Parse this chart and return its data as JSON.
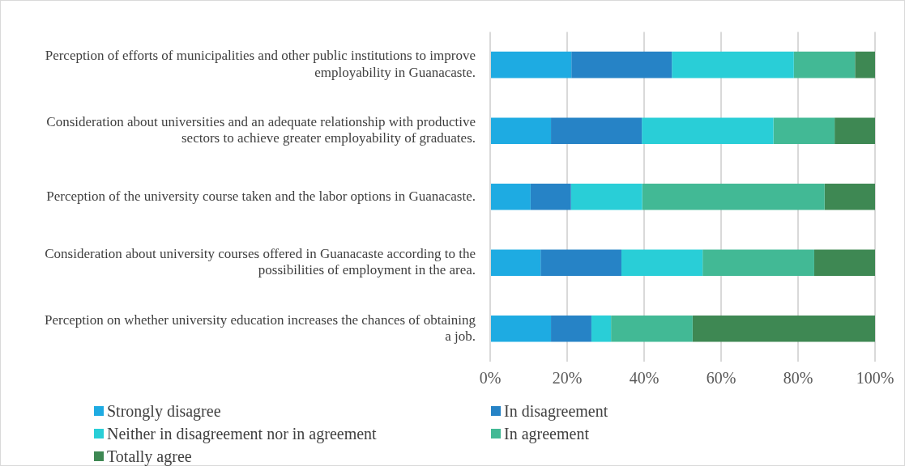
{
  "chart_data": {
    "type": "bar",
    "orientation": "horizontal",
    "stacked": true,
    "categories": [
      "Perception of efforts of municipalities and other public institutions to improve employability in Guanacaste.",
      "Consideration about universities and an adequate relationship with productive sectors to achieve greater employability of graduates.",
      "Perception of the university course taken and the labor options in Guanacaste.",
      "Consideration about university courses offered in Guanacaste according to the possibilities of employment in the area.",
      "Perception on whether university education increases the chances of obtaining a job."
    ],
    "series": [
      {
        "name": "Strongly disagree",
        "color": "#1eabe2",
        "values": [
          21.1,
          15.8,
          10.5,
          13.1,
          15.8
        ]
      },
      {
        "name": "In disagreement",
        "color": "#2683c6",
        "values": [
          26.1,
          23.6,
          10.5,
          21.0,
          10.5
        ]
      },
      {
        "name": "Neither in disagreement nor in agreement",
        "color": "#29ced7",
        "values": [
          31.7,
          34.2,
          18.5,
          21.1,
          5.1
        ]
      },
      {
        "name": "In agreement",
        "color": "#42b995",
        "values": [
          15.9,
          15.9,
          47.4,
          29.0,
          21.2
        ]
      },
      {
        "name": "Totally agree",
        "color": "#3e8853",
        "values": [
          5.2,
          10.5,
          13.1,
          15.8,
          47.4
        ]
      }
    ],
    "xlim": [
      0,
      100
    ],
    "xticks": [
      {
        "value": 0,
        "label": "0%"
      },
      {
        "value": 20,
        "label": "20%"
      },
      {
        "value": 40,
        "label": "40%"
      },
      {
        "value": 60,
        "label": "60%"
      },
      {
        "value": 80,
        "label": "80%"
      },
      {
        "value": 100,
        "label": "100%"
      }
    ],
    "grid": "x",
    "legend": "bottom"
  }
}
